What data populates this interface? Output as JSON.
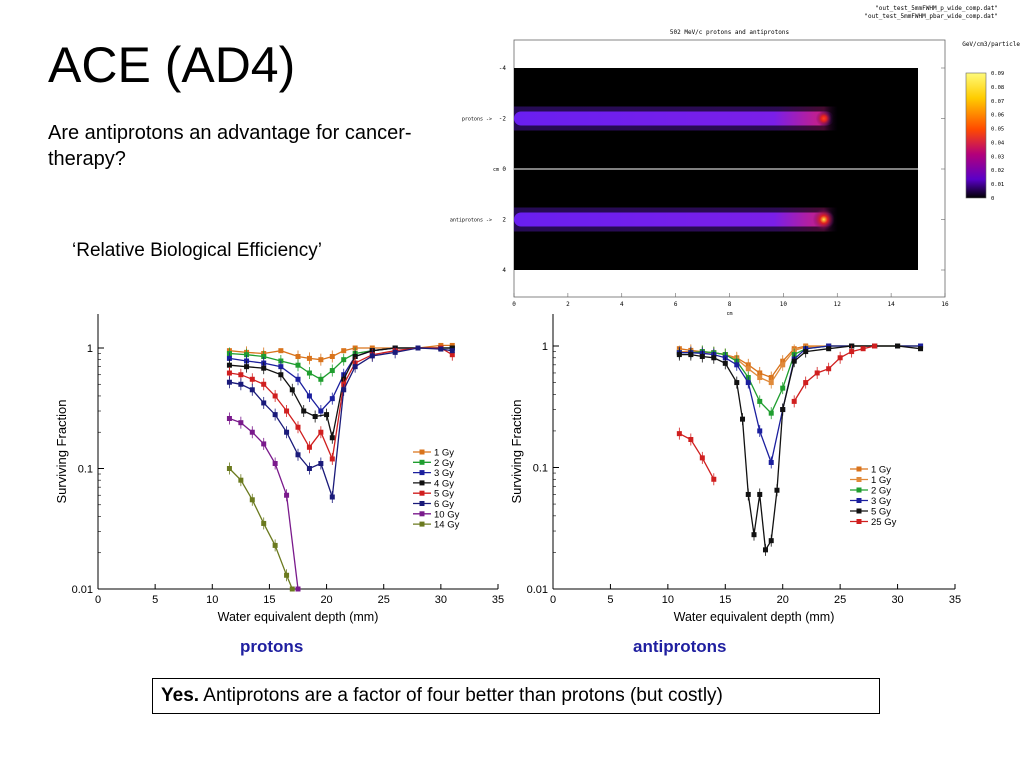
{
  "slide": {
    "title": "ACE (AD4)",
    "subtitle": "Are antiprotons an advantage for cancer-therapy?",
    "rbe_label": "‘Relative Biological Efficiency’",
    "caption_left": "protons",
    "caption_right": "antiprotons",
    "answer_bold": "Yes.",
    "answer_text": " Antiprotons are a factor of four better than protons (but costly)",
    "colors": {
      "caption": "#1f1fa0"
    }
  },
  "chart_data": [
    {
      "type": "heatmap",
      "title": "502 MeV/c protons and antiprotons",
      "legend_files": [
        "\"out_test_5mmFWHM_p_wide_comp.dat\"",
        "\"out_test_5mmFWHM_pbar_wide_comp.dat\""
      ],
      "xlabel": "cm",
      "ylabel": "cm",
      "xlim": [
        0,
        16
      ],
      "ylim": [
        -4,
        4
      ],
      "xticks": [
        "0",
        "2",
        "4",
        "6",
        "8",
        "10",
        "12",
        "14",
        "16"
      ],
      "yticks": [
        "-4",
        "-2",
        "0",
        "2",
        "4"
      ],
      "row_labels": [
        {
          "label": "protons ->",
          "y": -2
        },
        {
          "label": "antiprotons ->",
          "y": 2
        }
      ],
      "colorbar": {
        "label": "GeV/cm3/particle",
        "ticks": [
          "0.09",
          "0.08",
          "0.07",
          "0.06",
          "0.05",
          "0.04",
          "0.03",
          "0.02",
          "0.01",
          "0"
        ],
        "range": [
          0,
          0.09
        ]
      },
      "beams": [
        {
          "name": "protons",
          "y": -2,
          "x_start": 0,
          "x_peak": 11.5,
          "peak": 0.05
        },
        {
          "name": "antiprotons",
          "y": 2,
          "x_start": 0,
          "x_peak": 11.5,
          "peak": 0.07
        }
      ]
    },
    {
      "type": "line",
      "caption": "protons",
      "xlabel": "Water equivalent depth (mm)",
      "ylabel": "Surviving Fraction",
      "xlim": [
        0,
        35
      ],
      "ylim": [
        0.01,
        1
      ],
      "yscale": "log",
      "xticks": [
        "0",
        "5",
        "10",
        "15",
        "20",
        "25",
        "30",
        "35"
      ],
      "yticks": [
        "0.01",
        "0.1",
        "1"
      ],
      "legend": "right",
      "series": [
        {
          "name": "1 Gy",
          "color": "#d9731b",
          "x": [
            11.5,
            13,
            14.5,
            16,
            17.5,
            18.5,
            19.5,
            20.5,
            21.5,
            22.5,
            24,
            26,
            28,
            30,
            31
          ],
          "y": [
            0.95,
            0.92,
            0.9,
            0.95,
            0.85,
            0.82,
            0.8,
            0.85,
            0.95,
            1.0,
            1.0,
            1.0,
            1.0,
            1.05,
            1.05
          ]
        },
        {
          "name": "2 Gy",
          "color": "#1f9e2f",
          "x": [
            11.5,
            13,
            14.5,
            16,
            17.5,
            18.5,
            19.5,
            20.5,
            21.5,
            22.5,
            24,
            26,
            28,
            30,
            31
          ],
          "y": [
            0.9,
            0.88,
            0.85,
            0.78,
            0.72,
            0.62,
            0.55,
            0.65,
            0.8,
            0.9,
            0.95,
            1.0,
            1.0,
            1.0,
            1.0
          ]
        },
        {
          "name": "3 Gy",
          "color": "#1b1f9e",
          "x": [
            11.5,
            13,
            14.5,
            16,
            17.5,
            18.5,
            19.5,
            20.5,
            21.5,
            22.5,
            24,
            26,
            28,
            30,
            31
          ],
          "y": [
            0.82,
            0.78,
            0.75,
            0.7,
            0.55,
            0.4,
            0.3,
            0.38,
            0.6,
            0.85,
            0.95,
            1.0,
            1.0,
            1.0,
            1.0
          ]
        },
        {
          "name": "4 Gy",
          "color": "#111111",
          "x": [
            11.5,
            13,
            14.5,
            16,
            17,
            18,
            19,
            20,
            20.5,
            21.5,
            22.5,
            24,
            26,
            28,
            30,
            31
          ],
          "y": [
            0.72,
            0.7,
            0.68,
            0.6,
            0.45,
            0.3,
            0.27,
            0.28,
            0.18,
            0.55,
            0.85,
            0.95,
            1.0,
            1.0,
            1.0,
            1.0
          ]
        },
        {
          "name": "5 Gy",
          "color": "#d01f1f",
          "x": [
            11.5,
            12.5,
            13.5,
            14.5,
            15.5,
            16.5,
            17.5,
            18.5,
            19.5,
            20.5,
            21.5,
            22.5,
            24,
            26,
            28,
            30,
            31
          ],
          "y": [
            0.62,
            0.6,
            0.55,
            0.5,
            0.4,
            0.3,
            0.22,
            0.15,
            0.2,
            0.12,
            0.5,
            0.75,
            0.88,
            0.95,
            1.0,
            1.0,
            0.88
          ]
        },
        {
          "name": "6 Gy",
          "color": "#1a1a7a",
          "x": [
            11.5,
            12.5,
            13.5,
            14.5,
            15.5,
            16.5,
            17.5,
            18.5,
            19.5,
            20.5,
            21.5,
            22.5,
            24,
            26,
            28,
            30,
            31
          ],
          "y": [
            0.52,
            0.5,
            0.45,
            0.35,
            0.28,
            0.2,
            0.13,
            0.1,
            0.11,
            0.058,
            0.45,
            0.7,
            0.86,
            0.92,
            1.0,
            0.98,
            0.95
          ]
        },
        {
          "name": "10 Gy",
          "color": "#7a1a8c",
          "x": [
            11.5,
            12.5,
            13.5,
            14.5,
            15.5,
            16.5,
            17.5
          ],
          "y": [
            0.26,
            0.24,
            0.2,
            0.16,
            0.11,
            0.06,
            0.01
          ]
        },
        {
          "name": "14 Gy",
          "color": "#6b7a1f",
          "x": [
            11.5,
            12.5,
            13.5,
            14.5,
            15.5,
            16.5,
            17
          ],
          "y": [
            0.1,
            0.08,
            0.055,
            0.035,
            0.023,
            0.013,
            0.01
          ]
        }
      ]
    },
    {
      "type": "line",
      "caption": "antiprotons",
      "xlabel": "Water equivalent depth (mm)",
      "ylabel": "Surviving Fraction",
      "xlim": [
        0,
        35
      ],
      "ylim": [
        0.01,
        1
      ],
      "yscale": "log",
      "xticks": [
        "0",
        "5",
        "10",
        "15",
        "20",
        "25",
        "30",
        "35"
      ],
      "yticks": [
        "0.01",
        "0.1",
        "1"
      ],
      "legend": "right",
      "series": [
        {
          "name": "1 Gy",
          "color": "#d9731b",
          "x": [
            11,
            12,
            13,
            14,
            15,
            16,
            17,
            18,
            19,
            20,
            21,
            22,
            24,
            26,
            28,
            30,
            32
          ],
          "y": [
            0.95,
            0.92,
            0.9,
            0.88,
            0.85,
            0.8,
            0.7,
            0.6,
            0.55,
            0.75,
            0.95,
            1.0,
            1.0,
            1.0,
            1.0,
            1.0,
            1.0
          ]
        },
        {
          "name": "1 Gy",
          "color": "#e08a3a",
          "x": [
            11,
            12,
            13,
            14,
            15,
            16,
            17,
            18,
            19,
            20,
            21,
            22,
            24,
            26,
            28,
            30,
            32
          ],
          "y": [
            0.9,
            0.9,
            0.88,
            0.88,
            0.85,
            0.78,
            0.65,
            0.55,
            0.5,
            0.7,
            0.92,
            0.98,
            1.0,
            1.0,
            1.0,
            1.0,
            1.0
          ]
        },
        {
          "name": "2 Gy",
          "color": "#1f9e2f",
          "x": [
            11,
            12,
            13,
            14,
            15,
            16,
            17,
            18,
            19,
            20,
            21,
            22,
            24,
            26,
            28,
            30,
            32
          ],
          "y": [
            0.88,
            0.88,
            0.9,
            0.88,
            0.85,
            0.75,
            0.55,
            0.35,
            0.28,
            0.45,
            0.85,
            0.95,
            1.0,
            1.0,
            1.0,
            1.0,
            1.0
          ]
        },
        {
          "name": "3 Gy",
          "color": "#1b1f9e",
          "x": [
            11,
            12,
            13,
            14,
            15,
            16,
            17,
            18,
            19,
            20,
            21,
            22,
            24,
            26,
            28,
            30,
            32
          ],
          "y": [
            0.88,
            0.88,
            0.87,
            0.85,
            0.8,
            0.7,
            0.5,
            0.2,
            0.11,
            0.3,
            0.78,
            0.95,
            1.0,
            1.0,
            1.0,
            1.0,
            1.0
          ]
        },
        {
          "name": "5 Gy",
          "color": "#111111",
          "x": [
            11,
            12,
            13,
            14,
            15,
            16,
            16.5,
            17,
            17.5,
            18,
            18.5,
            19,
            19.5,
            20,
            21,
            22,
            24,
            26,
            28,
            30,
            32
          ],
          "y": [
            0.85,
            0.85,
            0.82,
            0.8,
            0.72,
            0.5,
            0.25,
            0.06,
            0.028,
            0.06,
            0.021,
            0.025,
            0.065,
            0.3,
            0.75,
            0.9,
            0.95,
            1.0,
            1.0,
            1.0,
            0.95
          ]
        },
        {
          "name": "25 Gy",
          "color": "#d01f1f",
          "x": [
            11,
            12,
            13,
            14
          ],
          "y": [
            0.19,
            0.17,
            0.12,
            0.08
          ]
        },
        {
          "name": "25 Gy",
          "color": "#d01f1f",
          "x": [
            21,
            22,
            23,
            24,
            25,
            26,
            27,
            28
          ],
          "y": [
            0.35,
            0.5,
            0.6,
            0.65,
            0.8,
            0.9,
            0.95,
            1.0
          ]
        }
      ]
    }
  ]
}
